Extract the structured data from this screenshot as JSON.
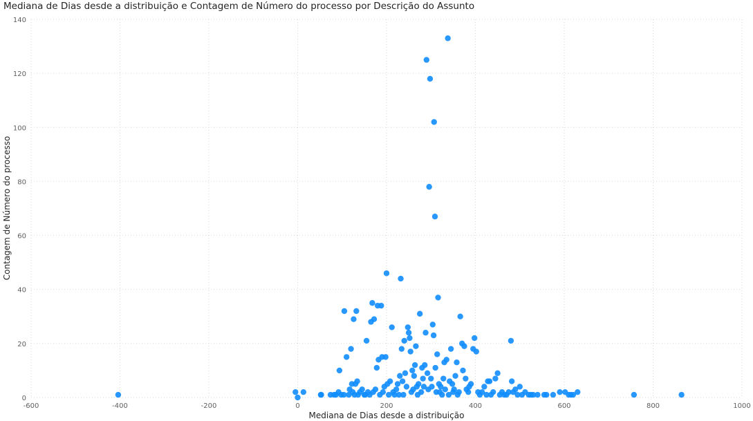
{
  "chart_data": {
    "type": "scatter",
    "title": "Mediana de Dias desde a distribuição e Contagem de Número do processo por Descrição do Assunto",
    "xlabel": "Mediana de Dias desde a distribuição",
    "ylabel": "Contagem de Número do processo",
    "xlim": [
      -600,
      1000
    ],
    "ylim": [
      0,
      140
    ],
    "xticks": [
      -600,
      -400,
      -200,
      0,
      200,
      400,
      600,
      800,
      1000
    ],
    "yticks": [
      0,
      20,
      40,
      60,
      80,
      100,
      120,
      140
    ],
    "grid": true,
    "point_color": "#118dff",
    "series": [
      {
        "points": [
          [
            -404,
            1
          ],
          [
            -5,
            2
          ],
          [
            0,
            0
          ],
          [
            13,
            2
          ],
          [
            52,
            1
          ],
          [
            53,
            1
          ],
          [
            74,
            1
          ],
          [
            82,
            1
          ],
          [
            86,
            1
          ],
          [
            92,
            2
          ],
          [
            94,
            10
          ],
          [
            98,
            1
          ],
          [
            104,
            1
          ],
          [
            105,
            32
          ],
          [
            110,
            15
          ],
          [
            115,
            1
          ],
          [
            117,
            3
          ],
          [
            120,
            18
          ],
          [
            122,
            5
          ],
          [
            124,
            2
          ],
          [
            126,
            29
          ],
          [
            128,
            1
          ],
          [
            130,
            5
          ],
          [
            132,
            32
          ],
          [
            134,
            6
          ],
          [
            136,
            1
          ],
          [
            140,
            2
          ],
          [
            145,
            3
          ],
          [
            150,
            1
          ],
          [
            152,
            1
          ],
          [
            155,
            21
          ],
          [
            158,
            2
          ],
          [
            162,
            1
          ],
          [
            165,
            28
          ],
          [
            168,
            35
          ],
          [
            170,
            2
          ],
          [
            172,
            29
          ],
          [
            175,
            3
          ],
          [
            178,
            11
          ],
          [
            180,
            34
          ],
          [
            182,
            14
          ],
          [
            185,
            1
          ],
          [
            188,
            34
          ],
          [
            190,
            15
          ],
          [
            192,
            2
          ],
          [
            195,
            4
          ],
          [
            198,
            15
          ],
          [
            200,
            46
          ],
          [
            202,
            5
          ],
          [
            205,
            1
          ],
          [
            208,
            6
          ],
          [
            212,
            26
          ],
          [
            215,
            2
          ],
          [
            218,
            1
          ],
          [
            222,
            3
          ],
          [
            225,
            5
          ],
          [
            228,
            1
          ],
          [
            230,
            8
          ],
          [
            232,
            44
          ],
          [
            234,
            18
          ],
          [
            236,
            6
          ],
          [
            238,
            1
          ],
          [
            240,
            21
          ],
          [
            242,
            9
          ],
          [
            245,
            4
          ],
          [
            248,
            26
          ],
          [
            250,
            24
          ],
          [
            252,
            22
          ],
          [
            254,
            17
          ],
          [
            256,
            2
          ],
          [
            258,
            10
          ],
          [
            260,
            3
          ],
          [
            262,
            8
          ],
          [
            264,
            12
          ],
          [
            266,
            19
          ],
          [
            268,
            4
          ],
          [
            270,
            1
          ],
          [
            272,
            5
          ],
          [
            275,
            31
          ],
          [
            278,
            2
          ],
          [
            280,
            11
          ],
          [
            282,
            7
          ],
          [
            284,
            4
          ],
          [
            286,
            12
          ],
          [
            288,
            24
          ],
          [
            290,
            125
          ],
          [
            292,
            9
          ],
          [
            294,
            3
          ],
          [
            296,
            78
          ],
          [
            298,
            118
          ],
          [
            300,
            7
          ],
          [
            302,
            4
          ],
          [
            304,
            27
          ],
          [
            306,
            23
          ],
          [
            307,
            102
          ],
          [
            309,
            67
          ],
          [
            310,
            11
          ],
          [
            312,
            2
          ],
          [
            314,
            16
          ],
          [
            316,
            37
          ],
          [
            318,
            5
          ],
          [
            320,
            2
          ],
          [
            322,
            4
          ],
          [
            325,
            1
          ],
          [
            328,
            7
          ],
          [
            330,
            13
          ],
          [
            332,
            3
          ],
          [
            335,
            14
          ],
          [
            338,
            133
          ],
          [
            340,
            1
          ],
          [
            342,
            6
          ],
          [
            345,
            18
          ],
          [
            348,
            5
          ],
          [
            350,
            2
          ],
          [
            352,
            3
          ],
          [
            355,
            8
          ],
          [
            358,
            13
          ],
          [
            360,
            1
          ],
          [
            363,
            2
          ],
          [
            366,
            30
          ],
          [
            370,
            20
          ],
          [
            372,
            10
          ],
          [
            375,
            19
          ],
          [
            378,
            7
          ],
          [
            380,
            3
          ],
          [
            384,
            2
          ],
          [
            386,
            4
          ],
          [
            390,
            5
          ],
          [
            395,
            18
          ],
          [
            398,
            22
          ],
          [
            402,
            17
          ],
          [
            406,
            2
          ],
          [
            410,
            1
          ],
          [
            415,
            2
          ],
          [
            420,
            4
          ],
          [
            425,
            1
          ],
          [
            428,
            6
          ],
          [
            432,
            6
          ],
          [
            435,
            1
          ],
          [
            440,
            2
          ],
          [
            445,
            7
          ],
          [
            450,
            9
          ],
          [
            455,
            1
          ],
          [
            460,
            2
          ],
          [
            465,
            1
          ],
          [
            470,
            1
          ],
          [
            475,
            2
          ],
          [
            480,
            21
          ],
          [
            482,
            6
          ],
          [
            485,
            2
          ],
          [
            490,
            3
          ],
          [
            495,
            1
          ],
          [
            500,
            4
          ],
          [
            505,
            1
          ],
          [
            512,
            2
          ],
          [
            520,
            1
          ],
          [
            525,
            1
          ],
          [
            530,
            1
          ],
          [
            540,
            1
          ],
          [
            555,
            1
          ],
          [
            560,
            1
          ],
          [
            575,
            1
          ],
          [
            590,
            2
          ],
          [
            602,
            2
          ],
          [
            610,
            1
          ],
          [
            615,
            1
          ],
          [
            620,
            1
          ],
          [
            630,
            2
          ],
          [
            757,
            1
          ],
          [
            864,
            1
          ]
        ]
      }
    ]
  }
}
